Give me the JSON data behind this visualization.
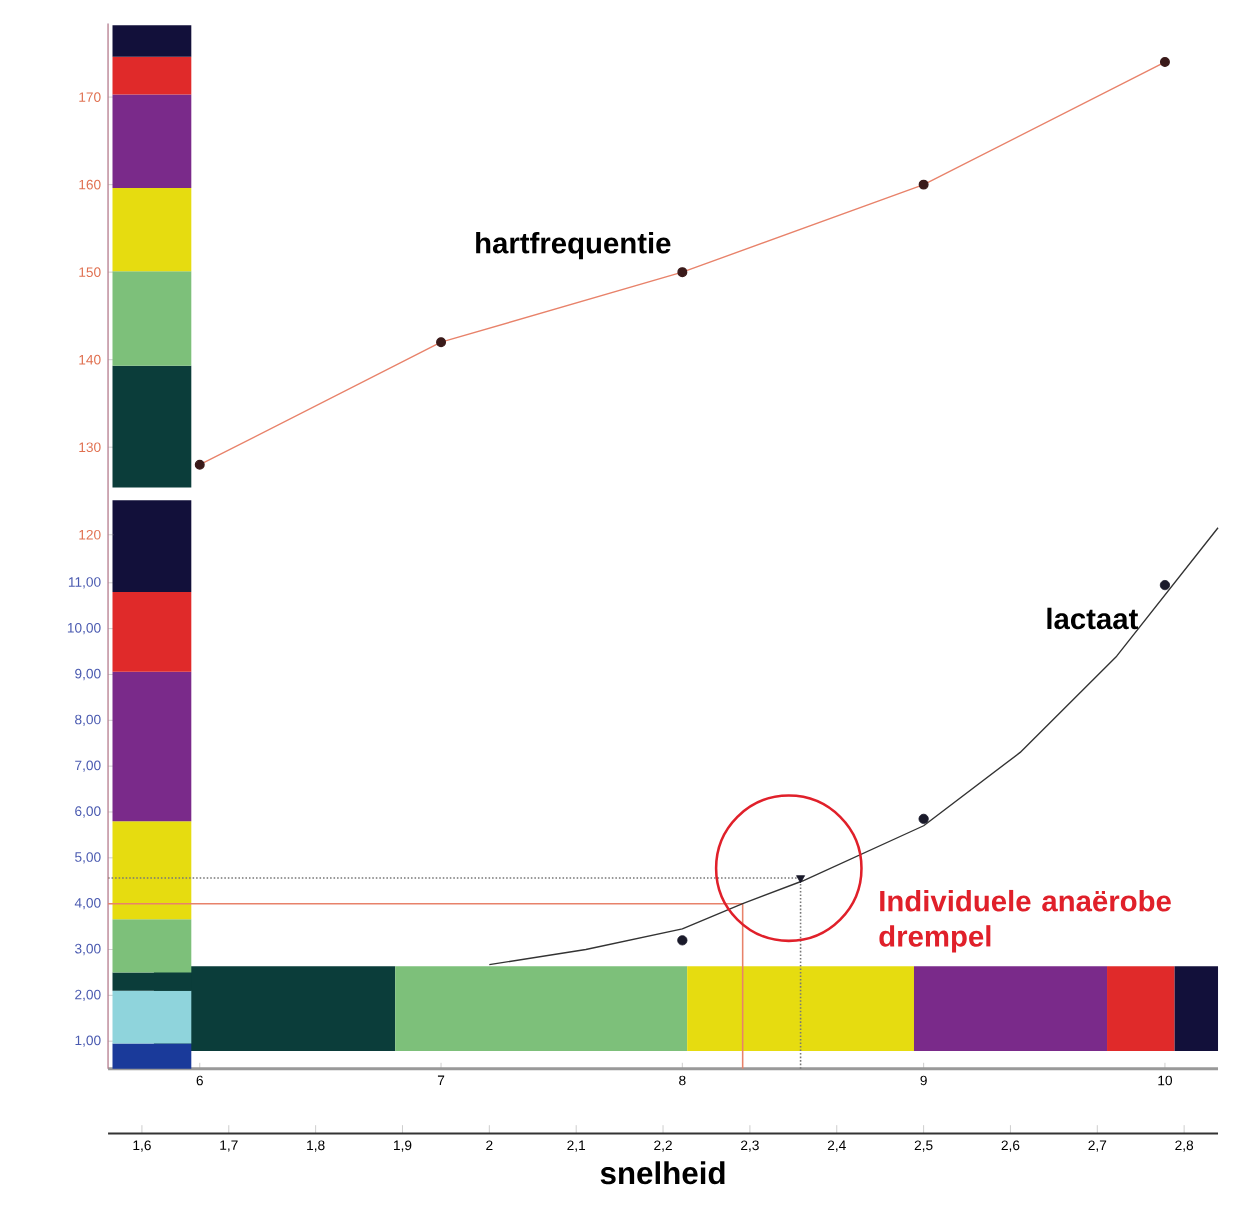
{
  "chart_data": {
    "type": "line",
    "xlabel": "snelheid",
    "xlim": [
      5.62,
      10.22
    ],
    "xticks": [
      6,
      7,
      8,
      9,
      10
    ],
    "x2lim": [
      1.561,
      2.839
    ],
    "x2ticks": [
      {
        "value": 1.6,
        "label": "1,6"
      },
      {
        "value": 1.7,
        "label": "1,7"
      },
      {
        "value": 1.8,
        "label": "1,8"
      },
      {
        "value": 1.9,
        "label": "1,9"
      },
      {
        "value": 2.0,
        "label": "2"
      },
      {
        "value": 2.1,
        "label": "2,1"
      },
      {
        "value": 2.2,
        "label": "2,2"
      },
      {
        "value": 2.3,
        "label": "2,3"
      },
      {
        "value": 2.4,
        "label": "2,4"
      },
      {
        "value": 2.5,
        "label": "2,5"
      },
      {
        "value": 2.6,
        "label": "2,6"
      },
      {
        "value": 2.7,
        "label": "2,7"
      },
      {
        "value": 2.8,
        "label": "2,8"
      }
    ],
    "ylim": [
      0.4,
      23.2
    ],
    "yticks": [
      {
        "value": 1,
        "label": "1,00"
      },
      {
        "value": 2,
        "label": "2,00"
      },
      {
        "value": 3,
        "label": "3,00"
      },
      {
        "value": 4,
        "label": "4,00"
      },
      {
        "value": 5,
        "label": "5,00"
      },
      {
        "value": 6,
        "label": "6,00"
      },
      {
        "value": 7,
        "label": "7,00"
      },
      {
        "value": 8,
        "label": "8,00"
      },
      {
        "value": 9,
        "label": "9,00"
      },
      {
        "value": 10,
        "label": "10,00"
      },
      {
        "value": 11,
        "label": "11,00"
      }
    ],
    "y2lim": [
      59,
      178.4
    ],
    "y2ticks": [
      120,
      130,
      140,
      150,
      160,
      170
    ],
    "series": [
      {
        "name": "hartfrequentie",
        "type": "line",
        "axis": "y2",
        "color": "#e8826a",
        "marker": "circle",
        "x": [
          6,
          7,
          8,
          9,
          10
        ],
        "values": [
          128,
          142,
          150,
          160,
          174
        ]
      },
      {
        "color": "#333333",
        "x": [
          7.2,
          7.6,
          8.0,
          8.25,
          8.5,
          9.0,
          9.4,
          9.8,
          10.22
        ],
        "values": [
          2.67,
          3.0,
          3.45,
          4.0,
          4.5,
          5.7,
          7.3,
          9.4,
          12.2
        ]
      },
      {
        "name": "lactaat",
        "type": "scatter",
        "color": "#1a1a2a",
        "marker": "circle",
        "x": [
          8,
          9,
          10
        ],
        "values": [
          3.2,
          5.85,
          10.95
        ]
      },
      {
        "type": "scatter",
        "color": "#1a1a2a",
        "marker": "triangle",
        "x": [
          8.49
        ],
        "values": [
          4.56
        ]
      }
    ],
    "ref_lines": [
      {
        "axis": "y",
        "value": 4,
        "color": "#e8826a",
        "line_style": "solid"
      },
      {
        "axis": "x",
        "value": 8.25,
        "color": "#e8826a",
        "line_style": "solid"
      },
      {
        "axis": "y",
        "value": 4.56,
        "color": "#777777",
        "line_style": "dotted"
      },
      {
        "axis": "x",
        "value": 8.49,
        "color": "#777777",
        "line_style": "dotted"
      }
    ],
    "bands": [
      {
        "axis": "x",
        "from": 5.81,
        "to": 6.81,
        "color": "#0b3d3a"
      },
      {
        "axis": "x",
        "from": 6.81,
        "to": 8.02,
        "color": "#7dc07a"
      },
      {
        "axis": "x",
        "from": 8.02,
        "to": 8.96,
        "color": "#e6dc10"
      },
      {
        "axis": "x",
        "from": 8.96,
        "to": 9.76,
        "color": "#7a2a8a"
      },
      {
        "axis": "x",
        "from": 9.76,
        "to": 10.04,
        "color": "#e02a2a"
      },
      {
        "axis": "x",
        "from": 10.04,
        "to": 10.22,
        "color": "#12103a"
      },
      {
        "axis": "y",
        "from": 0.4,
        "to": 0.95,
        "color": "#1a3a9a"
      },
      {
        "axis": "y",
        "from": 0.95,
        "to": 2.1,
        "color": "#8fd4dc"
      },
      {
        "axis": "y",
        "from": 2.1,
        "to": 2.5,
        "color": "#0b3d3a"
      },
      {
        "axis": "y",
        "from": 2.5,
        "to": 3.66,
        "color": "#7dc07a"
      },
      {
        "axis": "y",
        "from": 3.66,
        "to": 5.8,
        "color": "#e6dc10"
      },
      {
        "axis": "y",
        "from": 5.8,
        "to": 9.06,
        "color": "#7a2a8a"
      },
      {
        "axis": "y",
        "from": 9.06,
        "to": 10.8,
        "color": "#e02a2a"
      },
      {
        "axis": "y",
        "from": 10.8,
        "to": 12.8,
        "color": "#12103a"
      },
      {
        "axis": "y2",
        "from": 125.4,
        "to": 139.3,
        "color": "#0b3d3a"
      },
      {
        "axis": "y2",
        "from": 139.3,
        "to": 150.1,
        "color": "#7dc07a"
      },
      {
        "axis": "y2",
        "from": 150.1,
        "to": 159.6,
        "color": "#e6dc10"
      },
      {
        "axis": "y2",
        "from": 159.6,
        "to": 170.3,
        "color": "#7a2a8a"
      },
      {
        "axis": "y2",
        "from": 170.3,
        "to": 174.6,
        "color": "#e02a2a"
      },
      {
        "axis": "y2",
        "from": 174.6,
        "to": 178.2,
        "color": "#12103a"
      }
    ],
    "annotations": [
      {
        "text": "Individuele anaërobe drempel",
        "x": 8.49,
        "y": 4.56
      }
    ]
  }
}
